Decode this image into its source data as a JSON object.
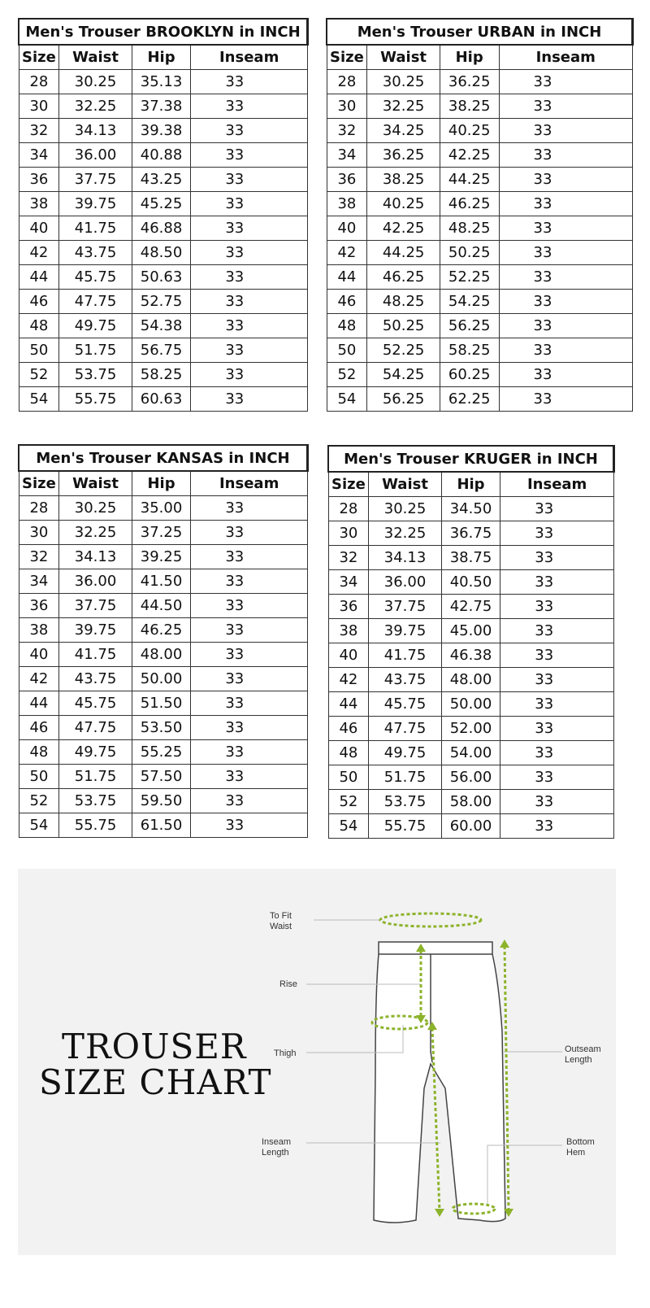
{
  "columns": [
    "Size",
    "Waist",
    "Hip",
    "Inseam"
  ],
  "tables": [
    {
      "title": "Men's Trouser BROOKLYN in INCH",
      "rows": [
        [
          "28",
          "30.25",
          "35.13",
          "33"
        ],
        [
          "30",
          "32.25",
          "37.38",
          "33"
        ],
        [
          "32",
          "34.13",
          "39.38",
          "33"
        ],
        [
          "34",
          "36.00",
          "40.88",
          "33"
        ],
        [
          "36",
          "37.75",
          "43.25",
          "33"
        ],
        [
          "38",
          "39.75",
          "45.25",
          "33"
        ],
        [
          "40",
          "41.75",
          "46.88",
          "33"
        ],
        [
          "42",
          "43.75",
          "48.50",
          "33"
        ],
        [
          "44",
          "45.75",
          "50.63",
          "33"
        ],
        [
          "46",
          "47.75",
          "52.75",
          "33"
        ],
        [
          "48",
          "49.75",
          "54.38",
          "33"
        ],
        [
          "50",
          "51.75",
          "56.75",
          "33"
        ],
        [
          "52",
          "53.75",
          "58.25",
          "33"
        ],
        [
          "54",
          "55.75",
          "60.63",
          "33"
        ]
      ]
    },
    {
      "title": "Men's Trouser URBAN in INCH",
      "rows": [
        [
          "28",
          "30.25",
          "36.25",
          "33"
        ],
        [
          "30",
          "32.25",
          "38.25",
          "33"
        ],
        [
          "32",
          "34.25",
          "40.25",
          "33"
        ],
        [
          "34",
          "36.25",
          "42.25",
          "33"
        ],
        [
          "36",
          "38.25",
          "44.25",
          "33"
        ],
        [
          "38",
          "40.25",
          "46.25",
          "33"
        ],
        [
          "40",
          "42.25",
          "48.25",
          "33"
        ],
        [
          "42",
          "44.25",
          "50.25",
          "33"
        ],
        [
          "44",
          "46.25",
          "52.25",
          "33"
        ],
        [
          "46",
          "48.25",
          "54.25",
          "33"
        ],
        [
          "48",
          "50.25",
          "56.25",
          "33"
        ],
        [
          "50",
          "52.25",
          "58.25",
          "33"
        ],
        [
          "52",
          "54.25",
          "60.25",
          "33"
        ],
        [
          "54",
          "56.25",
          "62.25",
          "33"
        ]
      ]
    },
    {
      "title": "Men's Trouser KANSAS in INCH",
      "rows": [
        [
          "28",
          "30.25",
          "35.00",
          "33"
        ],
        [
          "30",
          "32.25",
          "37.25",
          "33"
        ],
        [
          "32",
          "34.13",
          "39.25",
          "33"
        ],
        [
          "34",
          "36.00",
          "41.50",
          "33"
        ],
        [
          "36",
          "37.75",
          "44.50",
          "33"
        ],
        [
          "38",
          "39.75",
          "46.25",
          "33"
        ],
        [
          "40",
          "41.75",
          "48.00",
          "33"
        ],
        [
          "42",
          "43.75",
          "50.00",
          "33"
        ],
        [
          "44",
          "45.75",
          "51.50",
          "33"
        ],
        [
          "46",
          "47.75",
          "53.50",
          "33"
        ],
        [
          "48",
          "49.75",
          "55.25",
          "33"
        ],
        [
          "50",
          "51.75",
          "57.50",
          "33"
        ],
        [
          "52",
          "53.75",
          "59.50",
          "33"
        ],
        [
          "54",
          "55.75",
          "61.50",
          "33"
        ]
      ]
    },
    {
      "title": "Men's Trouser KRUGER in INCH",
      "rows": [
        [
          "28",
          "30.25",
          "34.50",
          "33"
        ],
        [
          "30",
          "32.25",
          "36.75",
          "33"
        ],
        [
          "32",
          "34.13",
          "38.75",
          "33"
        ],
        [
          "34",
          "36.00",
          "40.50",
          "33"
        ],
        [
          "36",
          "37.75",
          "42.75",
          "33"
        ],
        [
          "38",
          "39.75",
          "45.00",
          "33"
        ],
        [
          "40",
          "41.75",
          "46.38",
          "33"
        ],
        [
          "42",
          "43.75",
          "48.00",
          "33"
        ],
        [
          "44",
          "45.75",
          "50.00",
          "33"
        ],
        [
          "46",
          "47.75",
          "52.00",
          "33"
        ],
        [
          "48",
          "49.75",
          "54.00",
          "33"
        ],
        [
          "50",
          "51.75",
          "56.00",
          "33"
        ],
        [
          "52",
          "53.75",
          "58.00",
          "33"
        ],
        [
          "54",
          "55.75",
          "60.00",
          "33"
        ]
      ]
    }
  ],
  "diagram": {
    "title_line1": "TROUSER",
    "title_line2": "SIZE CHART",
    "labels": {
      "waist": [
        "To Fit",
        "Waist"
      ],
      "rise": "Rise",
      "thigh": "Thigh",
      "inseam": [
        "Inseam",
        "Length"
      ],
      "outseam": [
        "Outseam",
        "Length"
      ],
      "hem": [
        "Bottom",
        "Hem"
      ]
    },
    "accent_color": "#8db32b"
  }
}
